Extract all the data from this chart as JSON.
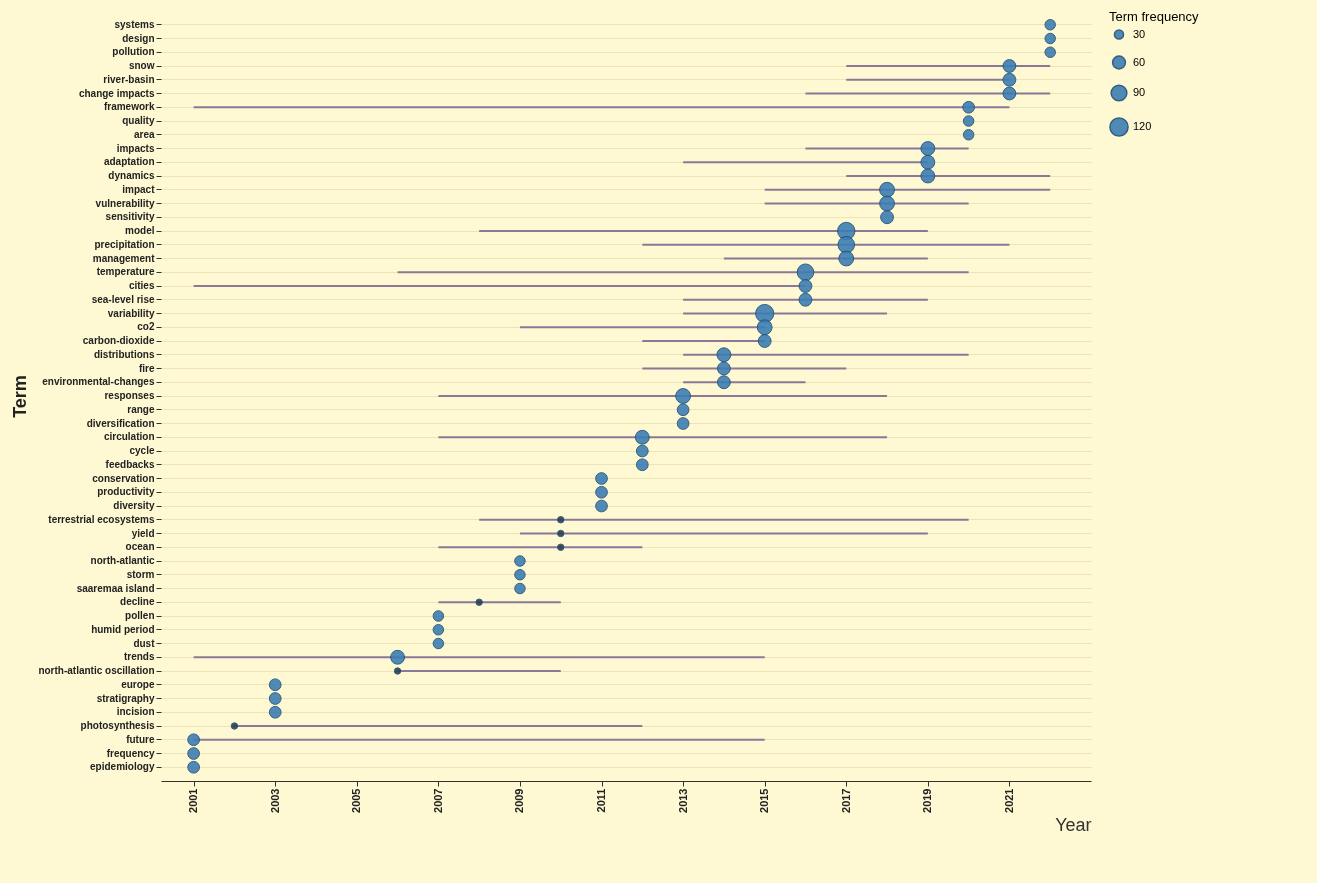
{
  "chart_data": {
    "type": "bubble",
    "orientation": "horizontal",
    "xlabel": "Year",
    "ylabel": "Term",
    "legend_title": "Term frequency",
    "grid": "y",
    "xlim": [
      2000.2,
      2023
    ],
    "xticks": [
      2001,
      2003,
      2005,
      2007,
      2009,
      2011,
      2013,
      2015,
      2017,
      2019,
      2021
    ],
    "size_legend": [
      30,
      60,
      90,
      120
    ],
    "categories": [
      "systems",
      "design",
      "pollution",
      "snow",
      "river-basin",
      "change impacts",
      "framework",
      "quality",
      "area",
      "impacts",
      "adaptation",
      "dynamics",
      "impact",
      "vulnerability",
      "sensitivity",
      "model",
      "precipitation",
      "management",
      "temperature",
      "cities",
      "sea-level rise",
      "variability",
      "co2",
      "carbon-dioxide",
      "distributions",
      "fire",
      "environmental-changes",
      "responses",
      "range",
      "diversification",
      "circulation",
      "cycle",
      "feedbacks",
      "conservation",
      "productivity",
      "diversity",
      "terrestrial ecosystems",
      "yield",
      "ocean",
      "north-atlantic",
      "storm",
      "saaremaa island",
      "decline",
      "pollen",
      "humid period",
      "dust",
      "trends",
      "north-atlantic oscillation",
      "europe",
      "stratigraphy",
      "incision",
      "photosynthesis",
      "future",
      "frequency",
      "epidemiology"
    ],
    "values": [
      2022,
      2022,
      2022,
      2021,
      2021,
      2021,
      2020,
      2020,
      2020,
      2019,
      2019,
      2019,
      2018,
      2018,
      2018,
      2017,
      2017,
      2017,
      2016,
      2016,
      2016,
      2015,
      2015,
      2015,
      2014,
      2014,
      2014,
      2013,
      2013,
      2013,
      2012,
      2012,
      2012,
      2011,
      2011,
      2011,
      2010,
      2010,
      2010,
      2009,
      2009,
      2009,
      2008,
      2007,
      2007,
      2007,
      2006,
      2006,
      2003,
      2003,
      2003,
      2002,
      2001,
      2001,
      2001
    ],
    "sizes": [
      40,
      40,
      40,
      60,
      60,
      60,
      50,
      40,
      40,
      70,
      70,
      70,
      80,
      80,
      60,
      110,
      100,
      80,
      100,
      60,
      60,
      120,
      80,
      60,
      70,
      60,
      60,
      80,
      50,
      50,
      70,
      50,
      50,
      50,
      50,
      50,
      15,
      15,
      15,
      40,
      40,
      40,
      15,
      40,
      40,
      40,
      70,
      15,
      50,
      50,
      50,
      15,
      50,
      50,
      50
    ],
    "colors": [
      "#3d7db3",
      "#3d7db3",
      "#3d7db3",
      "#3d7db3",
      "#3d7db3",
      "#3d7db3",
      "#3d7db3",
      "#3d7db3",
      "#3d7db3",
      "#3d7db3",
      "#3d7db3",
      "#3d7db3",
      "#3d7db3",
      "#3d7db3",
      "#3d7db3",
      "#3d7db3",
      "#3d7db3",
      "#3d7db3",
      "#3d7db3",
      "#3d7db3",
      "#3d7db3",
      "#3d7db3",
      "#3d7db3",
      "#3d7db3",
      "#3d7db3",
      "#3d7db3",
      "#3d7db3",
      "#3d7db3",
      "#3d7db3",
      "#3d7db3",
      "#3d7db3",
      "#3d7db3",
      "#3d7db3",
      "#3d7db3",
      "#3d7db3",
      "#3d7db3",
      "#2b3f4f",
      "#2b3f4f",
      "#2b3f4f",
      "#3d7db3",
      "#3d7db3",
      "#3d7db3",
      "#2b3f4f",
      "#3d7db3",
      "#3d7db3",
      "#3d7db3",
      "#3d7db3",
      "#2b3f4f",
      "#3d7db3",
      "#3d7db3",
      "#3d7db3",
      "#2b3f4f",
      "#3d7db3",
      "#3d7db3",
      "#3d7db3"
    ],
    "errors": [
      null,
      null,
      null,
      [
        2017,
        2022
      ],
      [
        2017,
        2021
      ],
      [
        2016,
        2022
      ],
      [
        2001,
        2021
      ],
      null,
      null,
      [
        2016,
        2020
      ],
      [
        2013,
        2019
      ],
      [
        2017,
        2022
      ],
      [
        2015,
        2022
      ],
      [
        2015,
        2020
      ],
      null,
      [
        2008,
        2019
      ],
      [
        2012,
        2021
      ],
      [
        2014,
        2019
      ],
      [
        2006,
        2020
      ],
      [
        2001,
        2016
      ],
      [
        2013,
        2019
      ],
      [
        2013,
        2018
      ],
      [
        2009,
        2015
      ],
      [
        2012,
        2015
      ],
      [
        2013,
        2020
      ],
      [
        2012,
        2017
      ],
      [
        2013,
        2016
      ],
      [
        2007,
        2018
      ],
      null,
      null,
      [
        2007,
        2018
      ],
      null,
      null,
      null,
      null,
      null,
      [
        2008,
        2020
      ],
      [
        2009,
        2019
      ],
      [
        2007,
        2012
      ],
      null,
      null,
      null,
      [
        2007,
        2010
      ],
      null,
      null,
      null,
      [
        2001,
        2015
      ],
      [
        2006,
        2010
      ],
      null,
      null,
      null,
      [
        2002,
        2012
      ],
      [
        2001,
        2015
      ],
      null,
      null
    ]
  }
}
